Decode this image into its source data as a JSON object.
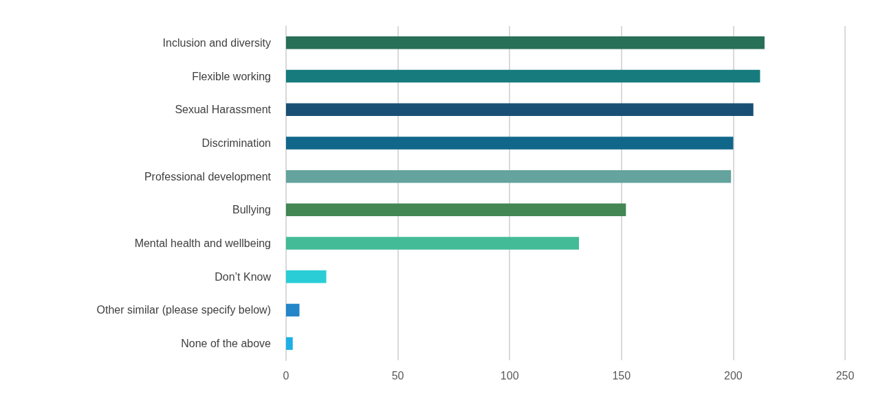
{
  "chart_data": {
    "type": "bar",
    "orientation": "horizontal",
    "categories": [
      "Inclusion and diversity",
      "Flexible working",
      "Sexual Harassment",
      "Discrimination",
      "Professional development",
      "Bullying",
      "Mental health and wellbeing",
      "Don’t Know",
      "Other similar (please specify below)",
      "None of the above"
    ],
    "values": [
      214,
      212,
      209,
      200,
      199,
      152,
      131,
      18,
      6,
      3
    ],
    "colors": [
      "#287058",
      "#177b7d",
      "#1a4f75",
      "#11678a",
      "#64a39e",
      "#428754",
      "#43bb96",
      "#2acdd6",
      "#2485c8",
      "#1eb0e4"
    ],
    "xlim": [
      0,
      250
    ],
    "xticks": [
      0,
      50,
      100,
      150,
      200,
      250
    ],
    "grid": "x"
  }
}
